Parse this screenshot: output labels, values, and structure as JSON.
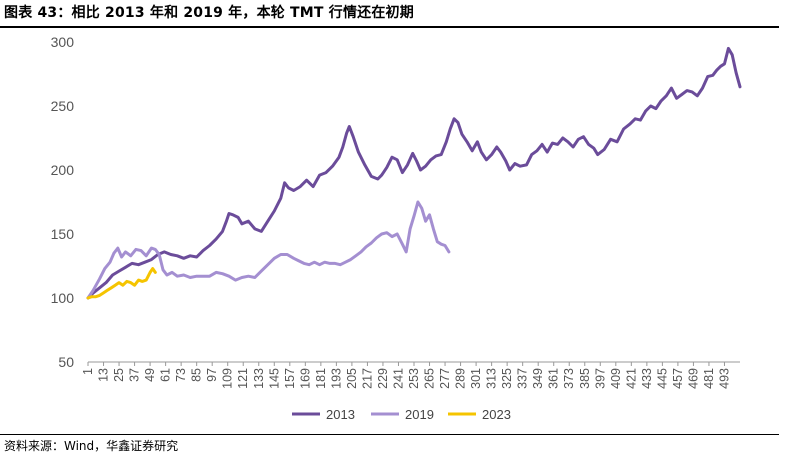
{
  "header": {
    "title": "图表 43：相比 2013 年和 2019 年，本轮 TMT 行情还在初期"
  },
  "footer": {
    "source": "资料来源：Wind，华鑫证券研究"
  },
  "chart_data": {
    "type": "line",
    "title": "",
    "xlabel": "",
    "ylabel": "",
    "ylim": [
      50,
      300
    ],
    "xlim": [
      1,
      505
    ],
    "y_ticks": [
      50,
      100,
      150,
      200,
      250,
      300
    ],
    "x_ticks": [
      1,
      13,
      25,
      37,
      49,
      61,
      73,
      85,
      97,
      109,
      121,
      133,
      145,
      157,
      169,
      181,
      193,
      205,
      217,
      229,
      241,
      253,
      265,
      277,
      289,
      301,
      313,
      325,
      337,
      349,
      361,
      373,
      385,
      397,
      409,
      421,
      433,
      445,
      457,
      469,
      481,
      493
    ],
    "legend_position": "bottom",
    "grid": false,
    "series": [
      {
        "name": "2013",
        "color": "#6B4C9A",
        "points": [
          [
            1,
            100
          ],
          [
            5,
            104
          ],
          [
            10,
            108
          ],
          [
            15,
            112
          ],
          [
            20,
            118
          ],
          [
            25,
            121
          ],
          [
            30,
            124
          ],
          [
            35,
            127
          ],
          [
            40,
            126
          ],
          [
            45,
            128
          ],
          [
            50,
            130
          ],
          [
            55,
            134
          ],
          [
            60,
            136
          ],
          [
            65,
            134
          ],
          [
            70,
            133
          ],
          [
            75,
            131
          ],
          [
            80,
            133
          ],
          [
            85,
            132
          ],
          [
            90,
            137
          ],
          [
            95,
            141
          ],
          [
            100,
            146
          ],
          [
            105,
            152
          ],
          [
            108,
            160
          ],
          [
            110,
            166
          ],
          [
            113,
            165
          ],
          [
            117,
            163
          ],
          [
            120,
            158
          ],
          [
            125,
            160
          ],
          [
            130,
            154
          ],
          [
            135,
            152
          ],
          [
            140,
            160
          ],
          [
            145,
            168
          ],
          [
            150,
            178
          ],
          [
            153,
            190
          ],
          [
            156,
            186
          ],
          [
            160,
            184
          ],
          [
            165,
            187
          ],
          [
            170,
            192
          ],
          [
            175,
            187
          ],
          [
            180,
            196
          ],
          [
            185,
            198
          ],
          [
            190,
            203
          ],
          [
            195,
            210
          ],
          [
            198,
            218
          ],
          [
            201,
            229
          ],
          [
            203,
            234
          ],
          [
            206,
            226
          ],
          [
            210,
            214
          ],
          [
            215,
            204
          ],
          [
            220,
            195
          ],
          [
            225,
            193
          ],
          [
            228,
            196
          ],
          [
            232,
            202
          ],
          [
            236,
            210
          ],
          [
            240,
            208
          ],
          [
            244,
            198
          ],
          [
            248,
            204
          ],
          [
            252,
            213
          ],
          [
            255,
            207
          ],
          [
            258,
            200
          ],
          [
            262,
            203
          ],
          [
            266,
            208
          ],
          [
            270,
            211
          ],
          [
            274,
            212
          ],
          [
            278,
            222
          ],
          [
            281,
            232
          ],
          [
            284,
            240
          ],
          [
            287,
            237
          ],
          [
            290,
            228
          ],
          [
            294,
            222
          ],
          [
            298,
            215
          ],
          [
            302,
            222
          ],
          [
            305,
            214
          ],
          [
            309,
            208
          ],
          [
            313,
            212
          ],
          [
            317,
            218
          ],
          [
            320,
            214
          ],
          [
            324,
            207
          ],
          [
            327,
            200
          ],
          [
            331,
            205
          ],
          [
            335,
            203
          ],
          [
            340,
            204
          ],
          [
            344,
            212
          ],
          [
            348,
            215
          ],
          [
            352,
            220
          ],
          [
            356,
            214
          ],
          [
            360,
            221
          ],
          [
            364,
            220
          ],
          [
            368,
            225
          ],
          [
            372,
            222
          ],
          [
            376,
            218
          ],
          [
            380,
            224
          ],
          [
            384,
            226
          ],
          [
            388,
            220
          ],
          [
            392,
            217
          ],
          [
            395,
            212
          ],
          [
            400,
            216
          ],
          [
            405,
            224
          ],
          [
            410,
            222
          ],
          [
            415,
            232
          ],
          [
            420,
            236
          ],
          [
            424,
            240
          ],
          [
            428,
            239
          ],
          [
            432,
            246
          ],
          [
            436,
            250
          ],
          [
            440,
            248
          ],
          [
            444,
            254
          ],
          [
            448,
            258
          ],
          [
            452,
            264
          ],
          [
            456,
            256
          ],
          [
            460,
            259
          ],
          [
            464,
            262
          ],
          [
            468,
            261
          ],
          [
            472,
            258
          ],
          [
            476,
            264
          ],
          [
            480,
            273
          ],
          [
            484,
            274
          ],
          [
            487,
            278
          ],
          [
            490,
            281
          ],
          [
            493,
            283
          ],
          [
            496,
            295
          ],
          [
            499,
            290
          ],
          [
            502,
            276
          ],
          [
            505,
            265
          ]
        ]
      },
      {
        "name": "2019",
        "color": "#A48FD1",
        "points": [
          [
            1,
            100
          ],
          [
            5,
            106
          ],
          [
            10,
            115
          ],
          [
            14,
            123
          ],
          [
            18,
            128
          ],
          [
            21,
            135
          ],
          [
            24,
            139
          ],
          [
            27,
            132
          ],
          [
            30,
            136
          ],
          [
            34,
            133
          ],
          [
            38,
            138
          ],
          [
            42,
            137
          ],
          [
            46,
            133
          ],
          [
            50,
            139
          ],
          [
            53,
            138
          ],
          [
            56,
            134
          ],
          [
            59,
            122
          ],
          [
            62,
            118
          ],
          [
            66,
            120
          ],
          [
            70,
            117
          ],
          [
            75,
            118
          ],
          [
            80,
            116
          ],
          [
            85,
            117
          ],
          [
            90,
            117
          ],
          [
            95,
            117
          ],
          [
            100,
            120
          ],
          [
            105,
            119
          ],
          [
            110,
            117
          ],
          [
            115,
            114
          ],
          [
            120,
            116
          ],
          [
            125,
            117
          ],
          [
            130,
            116
          ],
          [
            135,
            121
          ],
          [
            140,
            126
          ],
          [
            145,
            131
          ],
          [
            150,
            134
          ],
          [
            155,
            134
          ],
          [
            160,
            131
          ],
          [
            164,
            129
          ],
          [
            168,
            127
          ],
          [
            172,
            126
          ],
          [
            176,
            128
          ],
          [
            180,
            126
          ],
          [
            184,
            128
          ],
          [
            188,
            127
          ],
          [
            192,
            127
          ],
          [
            196,
            126
          ],
          [
            200,
            128
          ],
          [
            204,
            130
          ],
          [
            208,
            133
          ],
          [
            212,
            136
          ],
          [
            216,
            140
          ],
          [
            220,
            143
          ],
          [
            224,
            147
          ],
          [
            228,
            150
          ],
          [
            232,
            151
          ],
          [
            236,
            148
          ],
          [
            240,
            150
          ],
          [
            244,
            142
          ],
          [
            247,
            136
          ],
          [
            250,
            154
          ],
          [
            253,
            164
          ],
          [
            256,
            175
          ],
          [
            259,
            170
          ],
          [
            262,
            160
          ],
          [
            265,
            165
          ],
          [
            268,
            154
          ],
          [
            271,
            144
          ],
          [
            274,
            142
          ],
          [
            277,
            141
          ],
          [
            280,
            136
          ]
        ]
      },
      {
        "name": "2023",
        "color": "#F5C400",
        "points": [
          [
            1,
            100
          ],
          [
            4,
            101
          ],
          [
            7,
            101
          ],
          [
            10,
            102
          ],
          [
            13,
            104
          ],
          [
            16,
            106
          ],
          [
            19,
            108
          ],
          [
            22,
            110
          ],
          [
            25,
            112
          ],
          [
            28,
            110
          ],
          [
            31,
            113
          ],
          [
            34,
            112
          ],
          [
            37,
            110
          ],
          [
            40,
            114
          ],
          [
            43,
            113
          ],
          [
            46,
            114
          ],
          [
            49,
            120
          ],
          [
            51,
            123
          ],
          [
            53,
            120
          ]
        ]
      }
    ]
  }
}
